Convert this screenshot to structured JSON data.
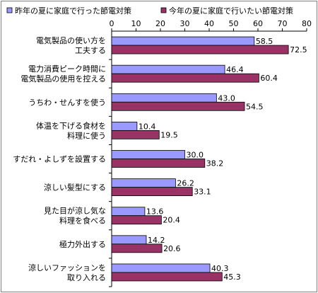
{
  "chart_data": {
    "type": "bar",
    "orientation": "horizontal",
    "categories": [
      "電気製品の使い方を\n工夫する",
      "電力消費ピーク時間に\n電気製品の使用を控える",
      "うちわ・せんすを使う",
      "体温を下げる食材を\n料理に使う",
      "すだれ・よしずを設置する",
      "涼しい髪型にする",
      "見た目が涼し気な\n料理を食べる",
      "極力外出する",
      "涼しいファッションを\n取り入れる"
    ],
    "series": [
      {
        "name": "昨年の夏に家庭で行った節電対策",
        "values": [
          58.5,
          46.4,
          43.0,
          10.4,
          30.0,
          26.2,
          13.6,
          14.2,
          40.3
        ],
        "labels": [
          "58.5",
          "46.4",
          "43.0",
          "10.4",
          "30.0",
          "26.2",
          "13.6",
          "14.2",
          "40.3"
        ]
      },
      {
        "name": "今年の夏に家庭で行いたい節電対策",
        "values": [
          72.5,
          60.4,
          54.5,
          19.5,
          38.2,
          33.1,
          20.4,
          20.6,
          45.3
        ],
        "labels": [
          "72.5",
          "60.4",
          "54.5",
          "19.5",
          "38.2",
          "33.1",
          "20.4",
          "20.6",
          "45.3"
        ]
      }
    ],
    "xlim": [
      0,
      80
    ],
    "ticks": [
      "0",
      "10",
      "20",
      "30",
      "40",
      "50",
      "60",
      "70",
      "80"
    ],
    "tick_values": [
      0,
      10,
      20,
      30,
      40,
      50,
      60,
      70,
      80
    ],
    "grid": false,
    "legend_position": "top",
    "colors": [
      "#9999ff",
      "#993366"
    ]
  }
}
